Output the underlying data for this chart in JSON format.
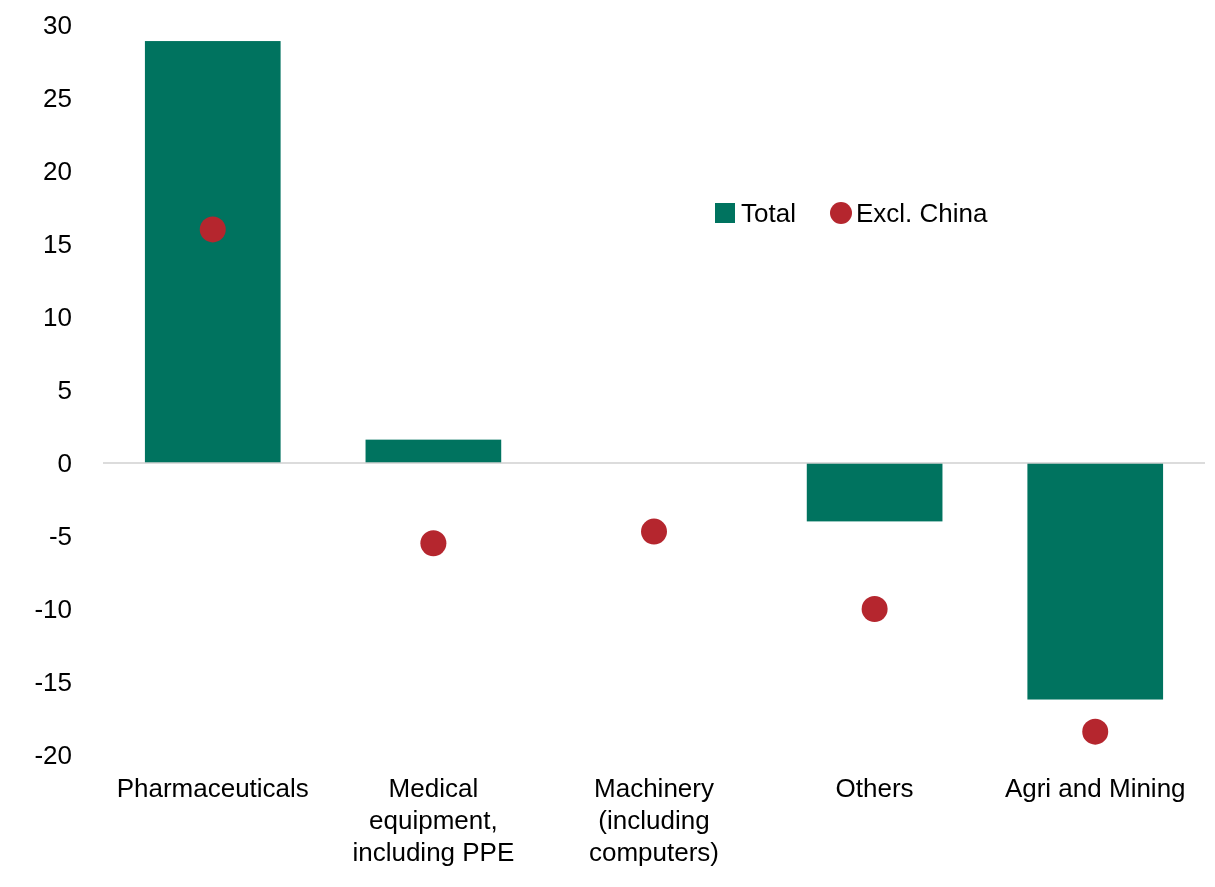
{
  "chart_data": {
    "type": "bar",
    "categories": [
      "Pharmaceuticals",
      "Medical equipment, including PPE",
      "Machinery (including computers)",
      "Others",
      "Agri and Mining"
    ],
    "series": [
      {
        "name": "Total",
        "color": "#00735f",
        "values": [
          28.9,
          1.6,
          0,
          -4.0,
          -16.2
        ]
      },
      {
        "name": "Excl. China",
        "type": "scatter",
        "color": "#b5262e",
        "values": [
          16.0,
          -5.5,
          -4.7,
          -10.0,
          -18.4
        ],
        "x": [
          "Pharmaceuticals",
          "Medical equipment, including PPE",
          "Machinery (including computers)",
          "Others",
          "Agri and Mining"
        ]
      }
    ],
    "ylim": [
      -20,
      30
    ],
    "yticks": [
      -20,
      -15,
      -10,
      -5,
      0,
      5,
      10,
      15,
      20,
      25,
      30
    ],
    "legend": "top right",
    "marker": "circle"
  }
}
